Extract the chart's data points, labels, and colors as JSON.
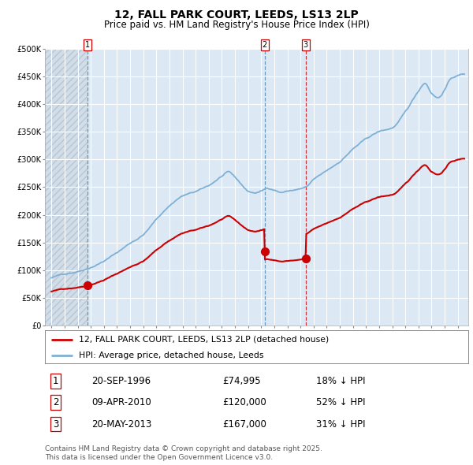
{
  "title": "12, FALL PARK COURT, LEEDS, LS13 2LP",
  "subtitle": "Price paid vs. HM Land Registry's House Price Index (HPI)",
  "legend_line1": "12, FALL PARK COURT, LEEDS, LS13 2LP (detached house)",
  "legend_line2": "HPI: Average price, detached house, Leeds",
  "footnote1": "Contains HM Land Registry data © Crown copyright and database right 2025.",
  "footnote2": "This data is licensed under the Open Government Licence v3.0.",
  "transactions": [
    {
      "num": 1,
      "date": "20-SEP-1996",
      "price": 74995,
      "pct": "18%",
      "dir": "↓",
      "year": 1996.72
    },
    {
      "num": 2,
      "date": "09-APR-2010",
      "price": 120000,
      "pct": "52%",
      "dir": "↓",
      "year": 2010.27
    },
    {
      "num": 3,
      "date": "20-MAY-2013",
      "price": 167000,
      "pct": "31%",
      "dir": "↓",
      "year": 2013.38
    }
  ],
  "hpi_color": "#7eb0d5",
  "price_color": "#cc0000",
  "bg_color": "#dce9f5",
  "grid_color": "#ffffff",
  "vline_blue_color": "#6699bb",
  "vline_red_color": "#cc3333",
  "hatch_color": "#c0c8d0",
  "title_fontsize": 10,
  "subtitle_fontsize": 8.5,
  "ylim": [
    0,
    500000
  ],
  "xlim": [
    1993.5,
    2025.8
  ],
  "year_ticks": [
    1994,
    1995,
    1996,
    1997,
    1998,
    1999,
    2000,
    2001,
    2002,
    2003,
    2004,
    2005,
    2006,
    2007,
    2008,
    2009,
    2010,
    2011,
    2012,
    2013,
    2014,
    2015,
    2016,
    2017,
    2018,
    2019,
    2020,
    2021,
    2022,
    2023,
    2024,
    2025
  ]
}
